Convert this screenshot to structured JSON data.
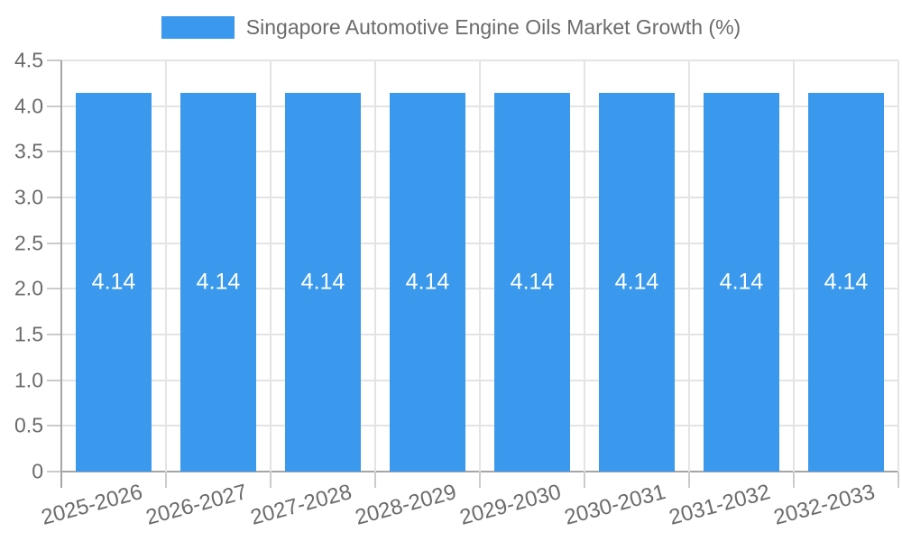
{
  "chart_data": {
    "type": "bar",
    "title": "Singapore Automotive Engine Oils Market Growth (%)",
    "legend": {
      "label": "Singapore Automotive Engine Oils Market Growth (%)",
      "position": "top"
    },
    "categories": [
      "2025-2026",
      "2026-2027",
      "2027-2028",
      "2028-2029",
      "2029-2030",
      "2030-2031",
      "2031-2032",
      "2032-2033"
    ],
    "values": [
      4.14,
      4.14,
      4.14,
      4.14,
      4.14,
      4.14,
      4.14,
      4.14
    ],
    "value_labels": [
      "4.14",
      "4.14",
      "4.14",
      "4.14",
      "4.14",
      "4.14",
      "4.14",
      "4.14"
    ],
    "xlabel": "",
    "ylabel": "",
    "ylim": [
      0,
      4.5
    ],
    "ytick_step": 0.5,
    "ytick_labels": [
      "0",
      "0.5",
      "1.0",
      "1.5",
      "2.0",
      "2.5",
      "3.0",
      "3.5",
      "4.0",
      "4.5"
    ],
    "grid": true,
    "colors": {
      "bar": "#3A99EC",
      "bar_label": "#FFFFFF",
      "axis_text": "#6B6B6B",
      "grid_line": "#E4E4E4",
      "axis_line": "#A6A6A6",
      "tick_line": "#CBCBCB",
      "background": "#FFFFFF"
    }
  }
}
